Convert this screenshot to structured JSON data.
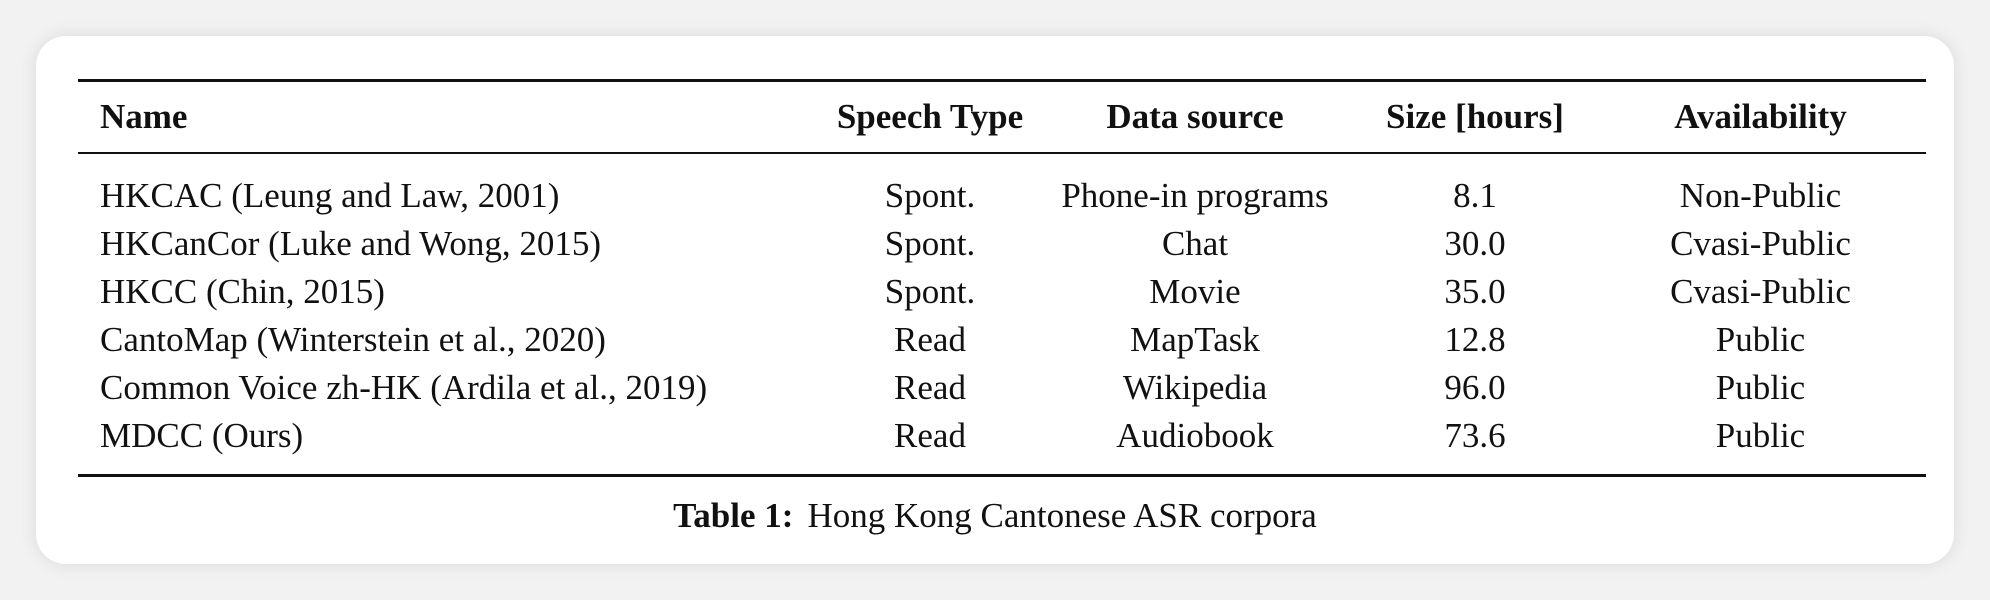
{
  "table": {
    "columns": [
      "Name",
      "Speech Type",
      "Data source",
      "Size [hours]",
      "Availability"
    ],
    "rows": [
      [
        "HKCAC (Leung and Law, 2001)",
        "Spont.",
        "Phone-in programs",
        "8.1",
        "Non-Public"
      ],
      [
        "HKCanCor (Luke and Wong, 2015)",
        "Spont.",
        "Chat",
        "30.0",
        "Cvasi-Public"
      ],
      [
        "HKCC (Chin, 2015)",
        "Spont.",
        "Movie",
        "35.0",
        "Cvasi-Public"
      ],
      [
        "CantoMap (Winterstein et al., 2020)",
        "Read",
        "MapTask",
        "12.8",
        "Public"
      ],
      [
        "Common Voice zh-HK (Ardila et al., 2019)",
        "Read",
        "Wikipedia",
        "96.0",
        "Public"
      ],
      [
        "MDCC (Ours)",
        "Read",
        "Audiobook",
        "73.6",
        "Public"
      ]
    ]
  },
  "caption": {
    "label": "Table 1:",
    "text": "Hong Kong Cantonese ASR corpora"
  }
}
